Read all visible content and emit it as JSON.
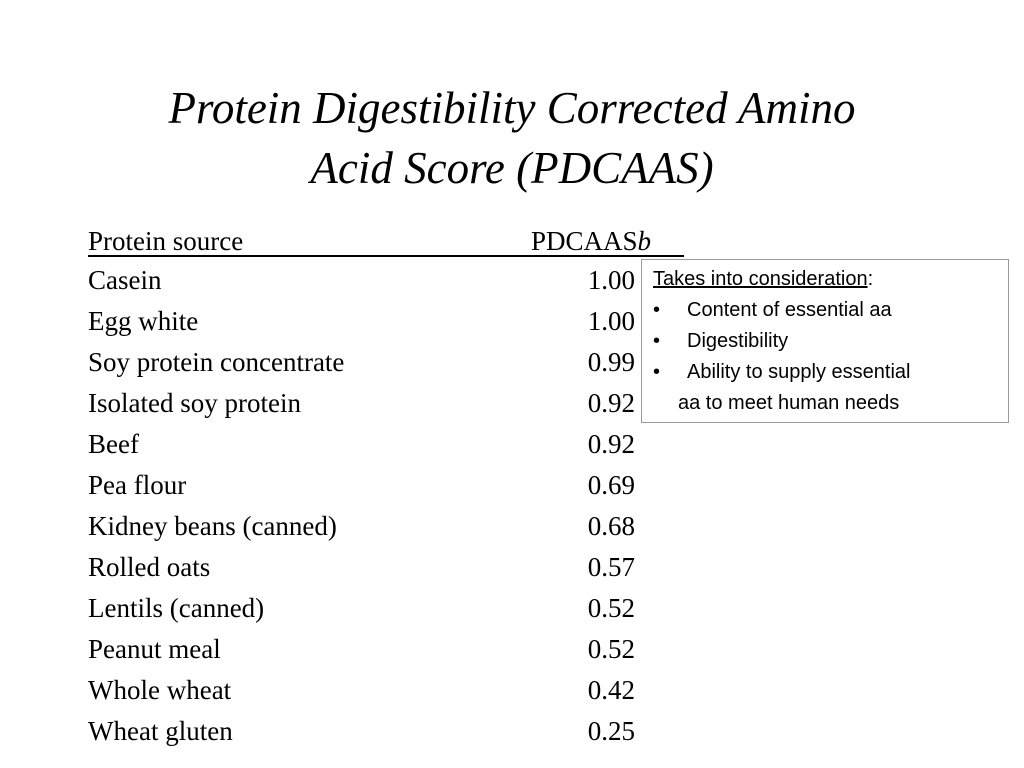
{
  "title": {
    "line1": "Protein Digestibility Corrected Amino",
    "line2": "Acid Score (PDCAAS)"
  },
  "table": {
    "header_source": "Protein source",
    "header_value": "PDCAAS",
    "header_value_suffix": "b",
    "rows": [
      {
        "source": "Casein",
        "value": "1.00"
      },
      {
        "source": "Egg white",
        "value": "1.00"
      },
      {
        "source": "Soy protein concentrate",
        "value": "0.99"
      },
      {
        "source": "Isolated soy protein",
        "value": "0.92"
      },
      {
        "source": "Beef",
        "value": "0.92"
      },
      {
        "source": "Pea flour",
        "value": "0.69"
      },
      {
        "source": "Kidney beans (canned)",
        "value": "0.68"
      },
      {
        "source": "Rolled oats",
        "value": "0.57"
      },
      {
        "source": "Lentils (canned)",
        "value": "0.52"
      },
      {
        "source": "Peanut meal",
        "value": "0.52"
      },
      {
        "source": "Whole wheat",
        "value": "0.42"
      },
      {
        "source": "Wheat gluten",
        "value": "0.25"
      }
    ]
  },
  "note": {
    "title": "Takes into consideration",
    "title_suffix": ":",
    "bullet": "•",
    "items": [
      "Content of essential aa",
      "Digestibility",
      "Ability to supply essential"
    ],
    "continuation": "aa to meet human needs"
  }
}
